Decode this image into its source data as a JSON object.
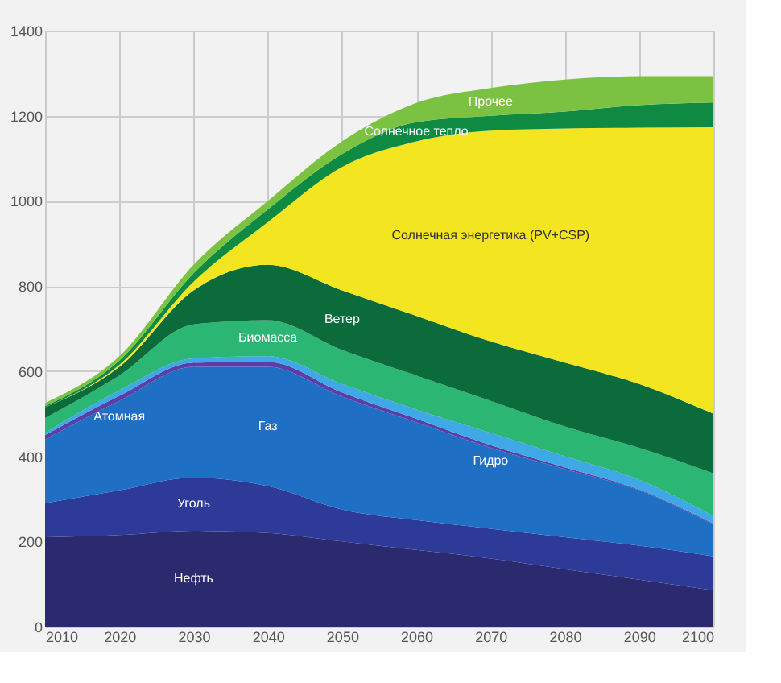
{
  "chart_data": {
    "type": "area",
    "stacked": true,
    "x": [
      2010,
      2020,
      2030,
      2040,
      2050,
      2060,
      2070,
      2080,
      2090,
      2100
    ],
    "series": [
      {
        "name": "Нефть",
        "color": "#2b2a6e",
        "values": [
          210,
          215,
          225,
          220,
          200,
          180,
          160,
          135,
          110,
          85
        ]
      },
      {
        "name": "Уголь",
        "color": "#2e3a97",
        "values": [
          80,
          105,
          125,
          110,
          75,
          70,
          70,
          75,
          80,
          80
        ]
      },
      {
        "name": "Газ",
        "color": "#1f6fc5",
        "values": [
          150,
          210,
          260,
          280,
          265,
          230,
          190,
          160,
          130,
          75
        ]
      },
      {
        "name": "Атомная",
        "color": "#5b3ea8",
        "values": [
          10,
          12,
          10,
          12,
          10,
          8,
          6,
          4,
          2,
          2
        ]
      },
      {
        "name": "Гидро",
        "color": "#3fa8e6",
        "values": [
          5,
          13,
          10,
          13,
          20,
          22,
          29,
          26,
          23,
          18
        ]
      },
      {
        "name": "Биомасса",
        "color": "#2bb673",
        "values": [
          35,
          35,
          80,
          85,
          80,
          80,
          75,
          70,
          75,
          100
        ]
      },
      {
        "name": "Ветер",
        "color": "#0b6b3a",
        "values": [
          25,
          20,
          80,
          130,
          140,
          140,
          140,
          150,
          150,
          140
        ]
      },
      {
        "name": "Солнечная энергетика (PV+CSP)",
        "color": "#f4e521",
        "values": [
          0,
          5,
          20,
          100,
          290,
          410,
          495,
          550,
          602,
          673
        ]
      },
      {
        "name": "Солнечное тепло",
        "color": "#0e8a43",
        "values": [
          3,
          10,
          20,
          30,
          30,
          45,
          35,
          40,
          53,
          58
        ]
      },
      {
        "name": "Прочее",
        "color": "#7cc242",
        "values": [
          7,
          10,
          20,
          20,
          30,
          45,
          65,
          75,
          68,
          62
        ]
      }
    ],
    "xlim": [
      2010,
      2100
    ],
    "xticks": [
      2010,
      2020,
      2030,
      2040,
      2050,
      2060,
      2070,
      2080,
      2090,
      2100
    ],
    "ylim": [
      0,
      1400
    ],
    "yticks": [
      0,
      200,
      400,
      600,
      800,
      1000,
      1200,
      1400
    ],
    "grid": true
  }
}
